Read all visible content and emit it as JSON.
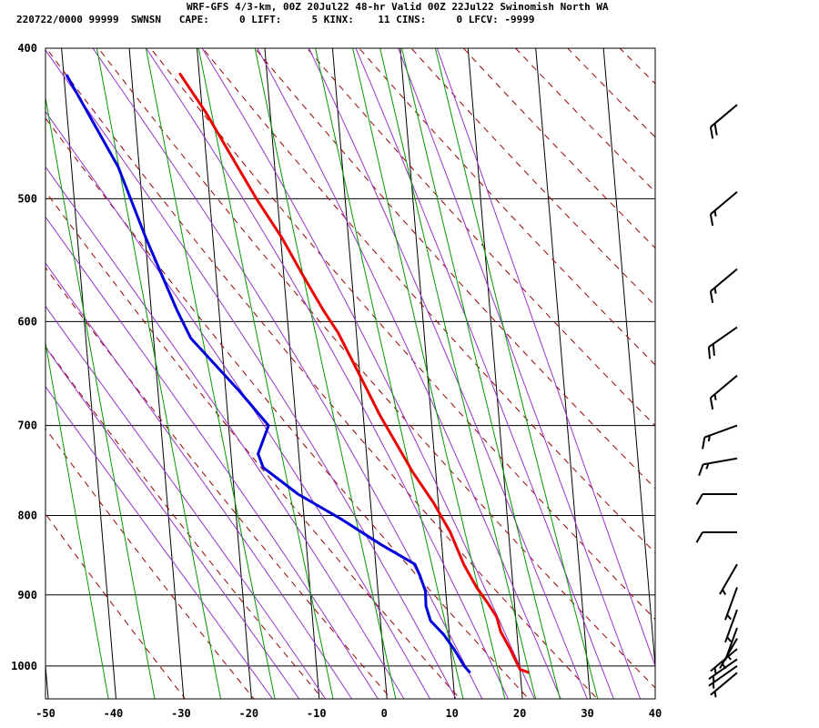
{
  "header": {
    "title": "WRF-GFS 4/3-km, 00Z 20Jul22 48-hr Valid 00Z 22Jul22 Swinomish North WA",
    "subtitle": "220722/0000 99999  SWNSN   CAPE:     0 LIFT:     5 KINX:    11 CINS:     0 LFCV: -9999"
  },
  "chart_data": {
    "type": "line",
    "subtype": "skew-t log-p sounding",
    "x_axis": {
      "min": -50,
      "max": 40,
      "ticks": [
        -50,
        -40,
        -30,
        -20,
        -10,
        0,
        10,
        20,
        30,
        40
      ],
      "tick_labels": [
        "-50",
        "-40",
        "-30",
        "-20",
        "-10",
        "0",
        "10",
        "20",
        "30",
        "40"
      ]
    },
    "y_axis": {
      "scale": "log",
      "top": 400,
      "bottom": 1050,
      "ticks": [
        400,
        500,
        600,
        700,
        800,
        900,
        1000
      ],
      "tick_labels": [
        "400",
        "500",
        "600",
        "700",
        "800",
        "900",
        "1000"
      ]
    },
    "grid": true,
    "colors": {
      "temperature": "#ee0000",
      "dewpoint": "#0000dd",
      "dry_adiabat": "#990000",
      "moist_adiabat": "#9933cc",
      "mixing_ratio": "#009900",
      "isobar": "#000000"
    },
    "series": [
      {
        "key": "temperature",
        "points": [
          [
            21.3,
            1010
          ],
          [
            20,
            1005
          ],
          [
            19.8,
            1000
          ],
          [
            18.8,
            975
          ],
          [
            17.6,
            950
          ],
          [
            17.2,
            930
          ],
          [
            16,
            910
          ],
          [
            14.6,
            890
          ],
          [
            13,
            860
          ],
          [
            11.4,
            820
          ],
          [
            9.3,
            785
          ],
          [
            6.6,
            750
          ],
          [
            4.6,
            720
          ],
          [
            2.5,
            690
          ],
          [
            0,
            650
          ],
          [
            -2.7,
            610
          ],
          [
            -4.6,
            590
          ],
          [
            -7.2,
            560
          ],
          [
            -9.8,
            530
          ],
          [
            -13.1,
            500
          ],
          [
            -16.2,
            470
          ],
          [
            -19.5,
            440
          ],
          [
            -22.9,
            415
          ]
        ]
      },
      {
        "key": "dewpoint",
        "points": [
          [
            12.6,
            1010
          ],
          [
            11.8,
            1000
          ],
          [
            10.5,
            975
          ],
          [
            9.2,
            955
          ],
          [
            7.4,
            935
          ],
          [
            6.9,
            915
          ],
          [
            7,
            895
          ],
          [
            6.4,
            875
          ],
          [
            5.8,
            860
          ],
          [
            1,
            835
          ],
          [
            -4.4,
            805
          ],
          [
            -10.6,
            775
          ],
          [
            -15.4,
            745
          ],
          [
            -16,
            730
          ],
          [
            -14.1,
            700
          ],
          [
            -18,
            665
          ],
          [
            -24.5,
            615
          ],
          [
            -26.2,
            590
          ],
          [
            -29.9,
            530
          ],
          [
            -33.1,
            477
          ],
          [
            -39.6,
            416
          ]
        ]
      }
    ],
    "winds": [
      {
        "p": 1010,
        "dir": 230,
        "kt": 5
      },
      {
        "p": 1000,
        "dir": 235,
        "kt": 5
      },
      {
        "p": 990,
        "dir": 235,
        "kt": 5
      },
      {
        "p": 975,
        "dir": 230,
        "kt": 5
      },
      {
        "p": 960,
        "dir": 210,
        "kt": 5
      },
      {
        "p": 945,
        "dir": 200,
        "kt": 5
      },
      {
        "p": 920,
        "dir": 200,
        "kt": 5
      },
      {
        "p": 890,
        "dir": 200,
        "kt": 5
      },
      {
        "p": 860,
        "dir": 210,
        "kt": 5
      },
      {
        "p": 820,
        "dir": 270,
        "kt": 10
      },
      {
        "p": 775,
        "dir": 270,
        "kt": 10
      },
      {
        "p": 735,
        "dir": 260,
        "kt": 15
      },
      {
        "p": 700,
        "dir": 250,
        "kt": 15
      },
      {
        "p": 650,
        "dir": 230,
        "kt": 15
      },
      {
        "p": 605,
        "dir": 235,
        "kt": 20
      },
      {
        "p": 555,
        "dir": 230,
        "kt": 15
      },
      {
        "p": 495,
        "dir": 230,
        "kt": 15
      },
      {
        "p": 435,
        "dir": 230,
        "kt": 20
      }
    ]
  }
}
